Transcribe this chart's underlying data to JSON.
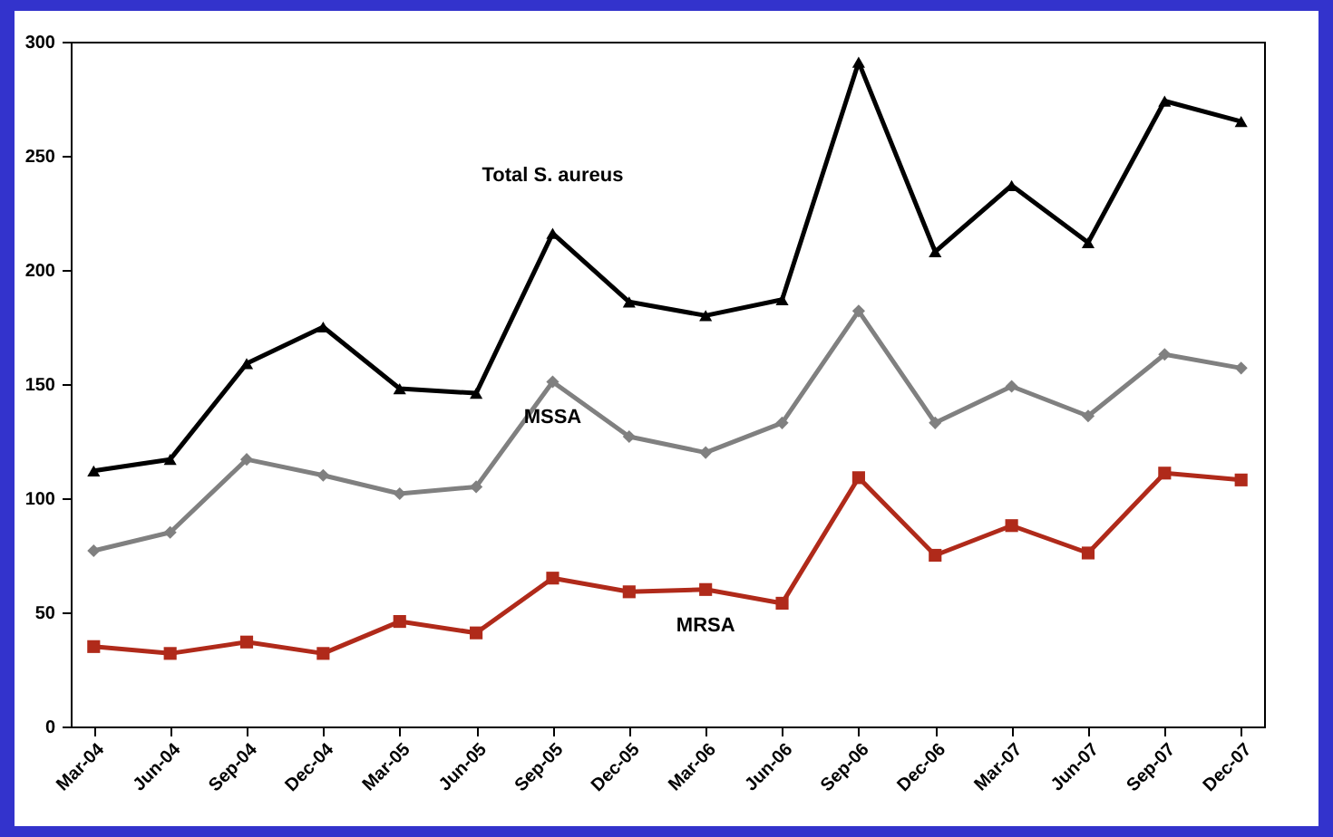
{
  "chart_data": {
    "type": "line",
    "categories": [
      "Mar-04",
      "Jun-04",
      "Sep-04",
      "Dec-04",
      "Mar-05",
      "Jun-05",
      "Sep-05",
      "Dec-05",
      "Mar-06",
      "Jun-06",
      "Sep-06",
      "Dec-06",
      "Mar-07",
      "Jun-07",
      "Sep-07",
      "Dec-07"
    ],
    "series": [
      {
        "name": "Total S. aureus",
        "color": "#000000",
        "marker": "triangle",
        "values": [
          112,
          117,
          159,
          175,
          148,
          146,
          216,
          186,
          180,
          187,
          291,
          208,
          237,
          212,
          274,
          265
        ]
      },
      {
        "name": "MSSA",
        "color": "#808080",
        "marker": "diamond",
        "values": [
          77,
          85,
          117,
          110,
          102,
          105,
          151,
          127,
          120,
          133,
          182,
          133,
          149,
          136,
          163,
          157
        ]
      },
      {
        "name": "MRSA",
        "color": "#b02a1a",
        "marker": "square",
        "values": [
          35,
          32,
          37,
          32,
          46,
          41,
          65,
          59,
          60,
          54,
          109,
          75,
          88,
          76,
          111,
          108
        ]
      }
    ],
    "ylim": [
      0,
      300
    ],
    "yticks": [
      0,
      50,
      100,
      150,
      200,
      250,
      300
    ],
    "grid": false,
    "line_style": "solid"
  }
}
